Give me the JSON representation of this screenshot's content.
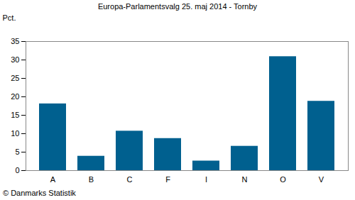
{
  "chart_data": {
    "type": "bar",
    "title": "Europa-Parlamentsvalg 25. maj 2014 - Tornby",
    "y_label": "Pct.",
    "caption": "© Danmarks Statistik",
    "categories": [
      "A",
      "B",
      "C",
      "F",
      "I",
      "N",
      "O",
      "V"
    ],
    "values": [
      18.1,
      3.9,
      10.7,
      8.7,
      2.6,
      6.6,
      30.9,
      18.8
    ],
    "color": "#00608f",
    "ylim": [
      0,
      35
    ],
    "yticks": [
      0,
      5,
      10,
      15,
      20,
      25,
      30,
      35
    ],
    "grid": false
  }
}
